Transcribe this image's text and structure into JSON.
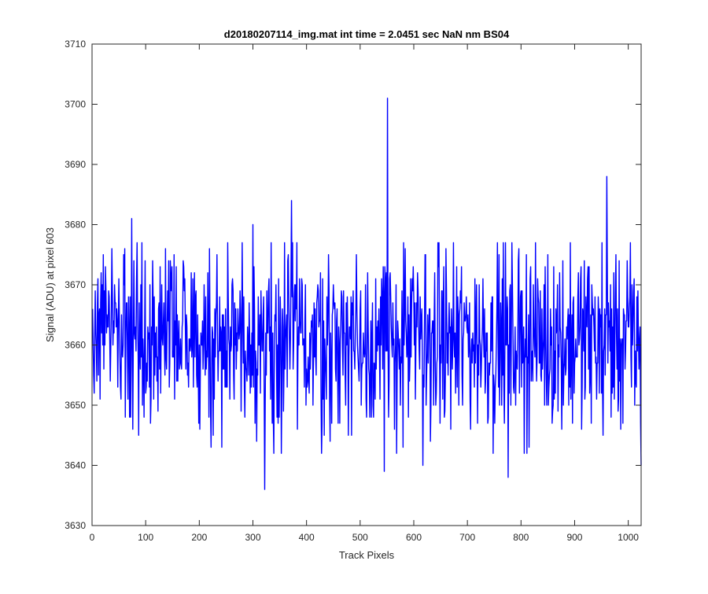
{
  "chart_data": {
    "type": "line",
    "title": "d20180207114_img.mat int time = 2.0451 sec  NaN nm BS04",
    "xlabel": "Track Pixels",
    "ylabel": "Signal (ADU) at pixel 603",
    "xlim": [
      0,
      1024
    ],
    "ylim": [
      3630,
      3710
    ],
    "xticks": [
      "0",
      "100",
      "200",
      "300",
      "400",
      "500",
      "600",
      "700",
      "800",
      "900",
      "1000"
    ],
    "yticks": [
      "3630",
      "3640",
      "3650",
      "3660",
      "3670",
      "3680",
      "3690",
      "3700",
      "3710"
    ],
    "grid": false,
    "line_color": "#0000ff",
    "series": [
      {
        "x_start": 1,
        "x_end": 1024,
        "noise_mean": 3661,
        "noise_range": [
          3642,
          3677
        ],
        "notable_points": [
          {
            "x": 74,
            "y": 3681
          },
          {
            "x": 87,
            "y": 3645
          },
          {
            "x": 300,
            "y": 3680
          },
          {
            "x": 322,
            "y": 3636
          },
          {
            "x": 372,
            "y": 3684
          },
          {
            "x": 545,
            "y": 3639
          },
          {
            "x": 551,
            "y": 3701
          },
          {
            "x": 553,
            "y": 3648
          },
          {
            "x": 617,
            "y": 3640
          },
          {
            "x": 776,
            "y": 3638
          },
          {
            "x": 960,
            "y": 3688
          },
          {
            "x": 1024,
            "y": 3640
          }
        ]
      }
    ]
  }
}
